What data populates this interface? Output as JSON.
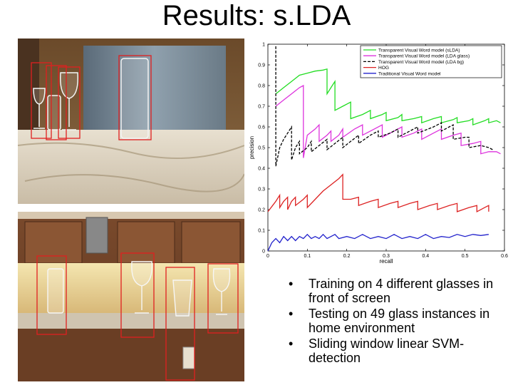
{
  "slide": {
    "title": "Results: s.LDA",
    "bullets": [
      "Training on 4 different glasses in front of screen",
      "Testing on 49 glass instances in home environment",
      "Sliding window linear SVM-detection"
    ]
  },
  "chart_data": {
    "type": "line",
    "xlabel": "recall",
    "ylabel": "precision",
    "xlim": [
      0,
      0.6
    ],
    "ylim": [
      0,
      1
    ],
    "xticks": [
      "0",
      "0.1",
      "0.2",
      "0.3",
      "0.4",
      "0.5",
      "0.6"
    ],
    "yticks": [
      "0",
      "0.1",
      "0.2",
      "0.3",
      "0.4",
      "0.5",
      "0.6",
      "0.7",
      "0.8",
      "0.9",
      "1"
    ],
    "grid": false,
    "legend_position": "top-right",
    "series": [
      {
        "name": "Transparent Visual Word model (sLDA)",
        "color": "#22dd22",
        "dash": "solid",
        "points": [
          [
            0.02,
            0.76
          ],
          [
            0.04,
            0.79
          ],
          [
            0.06,
            0.82
          ],
          [
            0.08,
            0.85
          ],
          [
            0.1,
            0.86
          ],
          [
            0.12,
            0.87
          ],
          [
            0.14,
            0.875
          ],
          [
            0.15,
            0.88
          ],
          [
            0.15,
            0.76
          ],
          [
            0.16,
            0.79
          ],
          [
            0.17,
            0.82
          ],
          [
            0.17,
            0.68
          ],
          [
            0.19,
            0.7
          ],
          [
            0.21,
            0.72
          ],
          [
            0.21,
            0.64
          ],
          [
            0.24,
            0.66
          ],
          [
            0.26,
            0.68
          ],
          [
            0.26,
            0.64
          ],
          [
            0.29,
            0.66
          ],
          [
            0.3,
            0.67
          ],
          [
            0.3,
            0.63
          ],
          [
            0.33,
            0.645
          ],
          [
            0.34,
            0.66
          ],
          [
            0.34,
            0.63
          ],
          [
            0.37,
            0.64
          ],
          [
            0.39,
            0.65
          ],
          [
            0.39,
            0.62
          ],
          [
            0.42,
            0.64
          ],
          [
            0.44,
            0.65
          ],
          [
            0.44,
            0.62
          ],
          [
            0.47,
            0.635
          ],
          [
            0.48,
            0.645
          ],
          [
            0.48,
            0.62
          ],
          [
            0.51,
            0.63
          ],
          [
            0.52,
            0.64
          ],
          [
            0.52,
            0.61
          ],
          [
            0.55,
            0.63
          ],
          [
            0.56,
            0.64
          ],
          [
            0.56,
            0.62
          ],
          [
            0.58,
            0.63
          ],
          [
            0.59,
            0.62
          ]
        ]
      },
      {
        "name": "Transparent Visual Word model (LDA glass)",
        "color": "#dd33dd",
        "dash": "solid",
        "points": [
          [
            0.02,
            0.7
          ],
          [
            0.04,
            0.73
          ],
          [
            0.06,
            0.76
          ],
          [
            0.08,
            0.79
          ],
          [
            0.09,
            0.8
          ],
          [
            0.09,
            0.45
          ],
          [
            0.1,
            0.56
          ],
          [
            0.12,
            0.59
          ],
          [
            0.13,
            0.61
          ],
          [
            0.13,
            0.53
          ],
          [
            0.15,
            0.56
          ],
          [
            0.16,
            0.58
          ],
          [
            0.16,
            0.53
          ],
          [
            0.18,
            0.56
          ],
          [
            0.19,
            0.59
          ],
          [
            0.19,
            0.55
          ],
          [
            0.22,
            0.59
          ],
          [
            0.24,
            0.61
          ],
          [
            0.24,
            0.56
          ],
          [
            0.27,
            0.59
          ],
          [
            0.29,
            0.61
          ],
          [
            0.29,
            0.55
          ],
          [
            0.32,
            0.58
          ],
          [
            0.34,
            0.6
          ],
          [
            0.34,
            0.55
          ],
          [
            0.37,
            0.57
          ],
          [
            0.39,
            0.59
          ],
          [
            0.39,
            0.54
          ],
          [
            0.42,
            0.57
          ],
          [
            0.44,
            0.59
          ],
          [
            0.44,
            0.54
          ],
          [
            0.47,
            0.56
          ],
          [
            0.49,
            0.57
          ],
          [
            0.49,
            0.51
          ],
          [
            0.52,
            0.52
          ],
          [
            0.54,
            0.53
          ],
          [
            0.54,
            0.47
          ],
          [
            0.56,
            0.48
          ],
          [
            0.58,
            0.48
          ],
          [
            0.59,
            0.47
          ]
        ]
      },
      {
        "name": "Transparent Visual Word model (LDA bg)",
        "color": "#000000",
        "dash": "dashed",
        "points": [
          [
            0.02,
            0.99
          ],
          [
            0.02,
            0.41
          ],
          [
            0.03,
            0.5
          ],
          [
            0.04,
            0.54
          ],
          [
            0.05,
            0.57
          ],
          [
            0.06,
            0.6
          ],
          [
            0.06,
            0.44
          ],
          [
            0.07,
            0.5
          ],
          [
            0.08,
            0.53
          ],
          [
            0.08,
            0.47
          ],
          [
            0.1,
            0.5
          ],
          [
            0.11,
            0.53
          ],
          [
            0.11,
            0.48
          ],
          [
            0.13,
            0.51
          ],
          [
            0.15,
            0.54
          ],
          [
            0.15,
            0.49
          ],
          [
            0.17,
            0.52
          ],
          [
            0.19,
            0.55
          ],
          [
            0.19,
            0.5
          ],
          [
            0.21,
            0.53
          ],
          [
            0.23,
            0.56
          ],
          [
            0.23,
            0.52
          ],
          [
            0.26,
            0.56
          ],
          [
            0.28,
            0.58
          ],
          [
            0.28,
            0.55
          ],
          [
            0.31,
            0.57
          ],
          [
            0.33,
            0.59
          ],
          [
            0.33,
            0.55
          ],
          [
            0.36,
            0.58
          ],
          [
            0.38,
            0.6
          ],
          [
            0.38,
            0.57
          ],
          [
            0.42,
            0.6
          ],
          [
            0.44,
            0.62
          ],
          [
            0.44,
            0.58
          ],
          [
            0.46,
            0.6
          ],
          [
            0.47,
            0.61
          ],
          [
            0.47,
            0.54
          ],
          [
            0.5,
            0.55
          ],
          [
            0.51,
            0.55
          ],
          [
            0.51,
            0.5
          ],
          [
            0.54,
            0.51
          ],
          [
            0.56,
            0.5
          ],
          [
            0.57,
            0.49
          ]
        ]
      },
      {
        "name": "HOG",
        "color": "#dd2222",
        "dash": "solid",
        "points": [
          [
            0.0,
            0.19
          ],
          [
            0.02,
            0.24
          ],
          [
            0.03,
            0.27
          ],
          [
            0.03,
            0.21
          ],
          [
            0.04,
            0.24
          ],
          [
            0.05,
            0.26
          ],
          [
            0.05,
            0.2
          ],
          [
            0.06,
            0.24
          ],
          [
            0.07,
            0.26
          ],
          [
            0.07,
            0.22
          ],
          [
            0.09,
            0.25
          ],
          [
            0.1,
            0.27
          ],
          [
            0.1,
            0.21
          ],
          [
            0.12,
            0.25
          ],
          [
            0.14,
            0.29
          ],
          [
            0.16,
            0.32
          ],
          [
            0.18,
            0.35
          ],
          [
            0.19,
            0.37
          ],
          [
            0.19,
            0.25
          ],
          [
            0.21,
            0.25
          ],
          [
            0.23,
            0.26
          ],
          [
            0.23,
            0.22
          ],
          [
            0.26,
            0.24
          ],
          [
            0.28,
            0.25
          ],
          [
            0.28,
            0.21
          ],
          [
            0.31,
            0.23
          ],
          [
            0.33,
            0.24
          ],
          [
            0.33,
            0.21
          ],
          [
            0.36,
            0.23
          ],
          [
            0.38,
            0.24
          ],
          [
            0.38,
            0.2
          ],
          [
            0.41,
            0.22
          ],
          [
            0.43,
            0.23
          ],
          [
            0.43,
            0.2
          ],
          [
            0.46,
            0.22
          ],
          [
            0.48,
            0.23
          ],
          [
            0.48,
            0.19
          ],
          [
            0.51,
            0.21
          ],
          [
            0.53,
            0.22
          ],
          [
            0.53,
            0.19
          ],
          [
            0.55,
            0.21
          ],
          [
            0.56,
            0.22
          ],
          [
            0.56,
            0.19
          ]
        ]
      },
      {
        "name": "Traditional Visual Word model",
        "color": "#2222cc",
        "dash": "solid",
        "points": [
          [
            0.0,
            0.0
          ],
          [
            0.01,
            0.04
          ],
          [
            0.02,
            0.06
          ],
          [
            0.03,
            0.04
          ],
          [
            0.04,
            0.07
          ],
          [
            0.05,
            0.05
          ],
          [
            0.06,
            0.07
          ],
          [
            0.07,
            0.05
          ],
          [
            0.08,
            0.07
          ],
          [
            0.09,
            0.06
          ],
          [
            0.1,
            0.08
          ],
          [
            0.11,
            0.06
          ],
          [
            0.12,
            0.07
          ],
          [
            0.13,
            0.06
          ],
          [
            0.14,
            0.08
          ],
          [
            0.15,
            0.06
          ],
          [
            0.17,
            0.08
          ],
          [
            0.18,
            0.06
          ],
          [
            0.2,
            0.07
          ],
          [
            0.22,
            0.06
          ],
          [
            0.24,
            0.08
          ],
          [
            0.26,
            0.06
          ],
          [
            0.28,
            0.07
          ],
          [
            0.3,
            0.06
          ],
          [
            0.32,
            0.08
          ],
          [
            0.34,
            0.06
          ],
          [
            0.36,
            0.07
          ],
          [
            0.38,
            0.06
          ],
          [
            0.4,
            0.08
          ],
          [
            0.42,
            0.06
          ],
          [
            0.44,
            0.07
          ],
          [
            0.46,
            0.065
          ],
          [
            0.48,
            0.08
          ],
          [
            0.5,
            0.07
          ],
          [
            0.52,
            0.08
          ],
          [
            0.54,
            0.075
          ],
          [
            0.56,
            0.08
          ]
        ]
      }
    ]
  }
}
